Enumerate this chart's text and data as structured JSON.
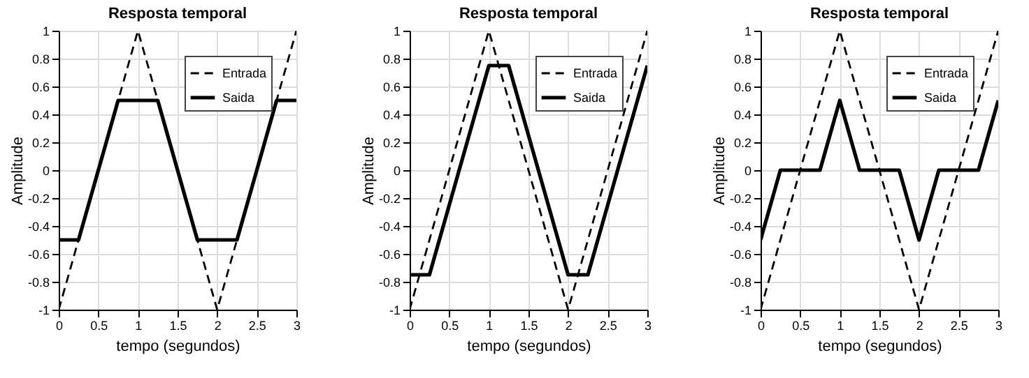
{
  "chart_data": [
    {
      "type": "line",
      "title": "Resposta temporal",
      "xlabel": "tempo (segundos)",
      "ylabel": "Amplitude",
      "xlim": [
        0,
        3
      ],
      "xticks": [
        0,
        0.5,
        1,
        1.5,
        2,
        2.5,
        3
      ],
      "ylim": [
        -1,
        1
      ],
      "yticks": [
        -1,
        -0.8,
        -0.6,
        -0.4,
        -0.2,
        0,
        0.2,
        0.4,
        0.6,
        0.8,
        1
      ],
      "grid": true,
      "legend": "top right",
      "marker": "none",
      "series": [
        {
          "name": "Entrada",
          "color": "#000000",
          "line_style": "dashed",
          "x": [
            0,
            1,
            2,
            3
          ],
          "values": [
            -1,
            1,
            -1,
            1
          ]
        },
        {
          "name": "Saida",
          "color": "#000000",
          "line_style": "solid",
          "x": [
            0,
            0.25,
            0.75,
            1.25,
            1.75,
            2.25,
            2.75,
            3
          ],
          "values": [
            -0.5,
            -0.5,
            0.5,
            0.5,
            -0.5,
            -0.5,
            0.5,
            0.5
          ]
        }
      ]
    },
    {
      "type": "line",
      "title": "Resposta temporal",
      "xlabel": "tempo (segundos)",
      "ylabel": "Amplitude",
      "xlim": [
        0,
        3
      ],
      "xticks": [
        0,
        0.5,
        1,
        1.5,
        2,
        2.5,
        3
      ],
      "ylim": [
        -1,
        1
      ],
      "yticks": [
        -1,
        -0.8,
        -0.6,
        -0.4,
        -0.2,
        0,
        0.2,
        0.4,
        0.6,
        0.8,
        1
      ],
      "grid": true,
      "legend": "top right",
      "marker": "none",
      "series": [
        {
          "name": "Entrada",
          "color": "#000000",
          "line_style": "dashed",
          "x": [
            0,
            1,
            2,
            3
          ],
          "values": [
            -1,
            1,
            -1,
            1
          ]
        },
        {
          "name": "Saida",
          "color": "#000000",
          "line_style": "solid",
          "x": [
            0,
            0.25,
            1,
            1.25,
            2,
            2.25,
            3
          ],
          "values": [
            -0.75,
            -0.75,
            0.75,
            0.75,
            -0.75,
            -0.75,
            0.75
          ]
        }
      ]
    },
    {
      "type": "line",
      "title": "Resposta temporal",
      "xlabel": "tempo (segundos)",
      "ylabel": "Amplitude",
      "xlim": [
        0,
        3
      ],
      "xticks": [
        0,
        0.5,
        1,
        1.5,
        2,
        2.5,
        3
      ],
      "ylim": [
        -1,
        1
      ],
      "yticks": [
        -1,
        -0.8,
        -0.6,
        -0.4,
        -0.2,
        0,
        0.2,
        0.4,
        0.6,
        0.8,
        1
      ],
      "grid": true,
      "legend": "top right",
      "marker": "none",
      "series": [
        {
          "name": "Entrada",
          "color": "#000000",
          "line_style": "dashed",
          "x": [
            0,
            1,
            2,
            3
          ],
          "values": [
            -1,
            1,
            -1,
            1
          ]
        },
        {
          "name": "Saida",
          "color": "#000000",
          "line_style": "solid",
          "x": [
            0,
            0.25,
            0.75,
            1,
            1.25,
            1.75,
            2,
            2.25,
            2.75,
            3
          ],
          "values": [
            -0.5,
            0,
            0,
            0.5,
            0,
            0,
            -0.5,
            0,
            0,
            0.5
          ]
        }
      ]
    }
  ]
}
